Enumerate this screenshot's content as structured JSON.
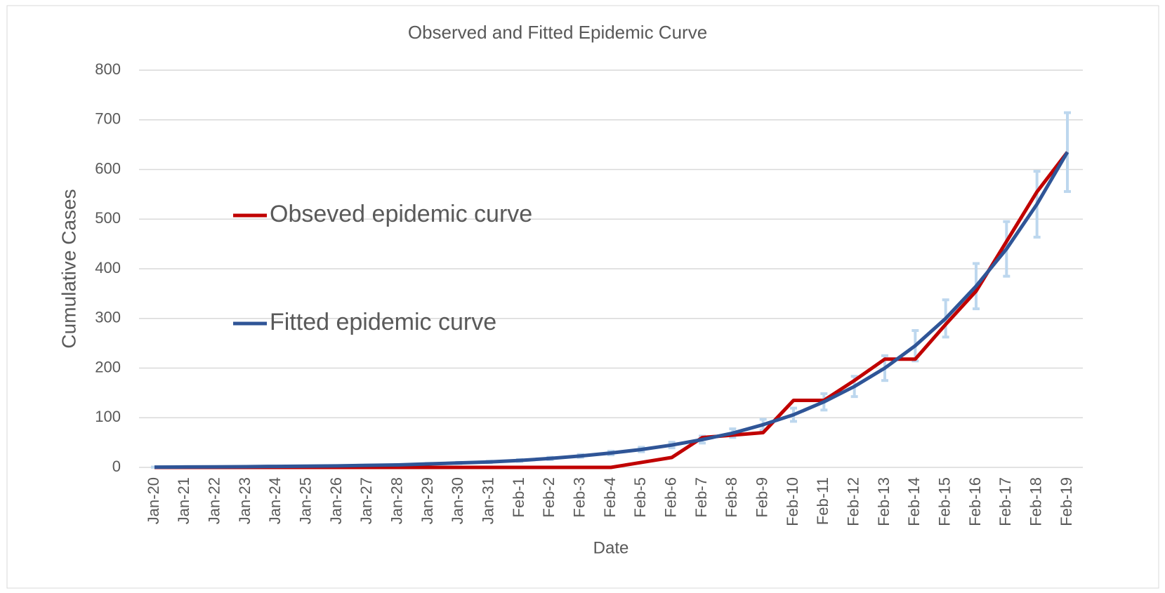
{
  "chart_data": {
    "type": "line",
    "title": "Observed and Fitted Epidemic Curve",
    "x_label": "Date",
    "y_label": "Cumulative Cases",
    "categories": [
      "Jan-20",
      "Jan-21",
      "Jan-22",
      "Jan-23",
      "Jan-24",
      "Jan-25",
      "Jan-26",
      "Jan-27",
      "Jan-28",
      "Jan-29",
      "Jan-30",
      "Jan-31",
      "Feb-1",
      "Feb-2",
      "Feb-3",
      "Feb-4",
      "Feb-5",
      "Feb-6",
      "Feb-7",
      "Feb-8",
      "Feb-9",
      "Feb-10",
      "Feb-11",
      "Feb-12",
      "Feb-13",
      "Feb-14",
      "Feb-15",
      "Feb-16",
      "Feb-17",
      "Feb-18",
      "Feb-19"
    ],
    "series": [
      {
        "name": "Obseved epidemic curve",
        "color": "#c00000",
        "values": [
          0,
          0,
          0,
          0,
          0,
          0,
          0,
          0,
          0,
          0,
          0,
          0,
          0,
          0,
          0,
          0,
          10,
          20,
          60,
          65,
          70,
          135,
          135,
          175,
          218,
          218,
          288,
          355,
          455,
          555,
          635
        ]
      },
      {
        "name": "Fitted epidemic curve",
        "color": "#2f5597",
        "values": [
          0.5,
          0.8,
          1,
          1.5,
          2,
          2.5,
          3,
          4,
          5,
          7,
          9,
          11,
          14,
          18,
          23,
          29,
          36,
          45,
          56,
          69,
          86,
          106,
          132,
          163,
          200,
          245,
          300,
          365,
          440,
          530,
          635
        ],
        "errors": [
          0.1,
          0.1,
          0.1,
          0.2,
          0.3,
          0.3,
          0.4,
          0.5,
          0.6,
          0.9,
          1.1,
          1.4,
          1.8,
          2.3,
          2.9,
          3.6,
          4.5,
          5.6,
          7,
          8.6,
          10.8,
          13.3,
          16.5,
          20.4,
          25,
          30.6,
          37.5,
          45.6,
          55,
          66.3,
          79.4
        ],
        "error_color": "#bdd7ee"
      }
    ],
    "ylim": [
      0,
      800
    ],
    "yticks": [
      0,
      100,
      200,
      300,
      400,
      500,
      600,
      700,
      800
    ],
    "grid": true,
    "legend": "left"
  }
}
